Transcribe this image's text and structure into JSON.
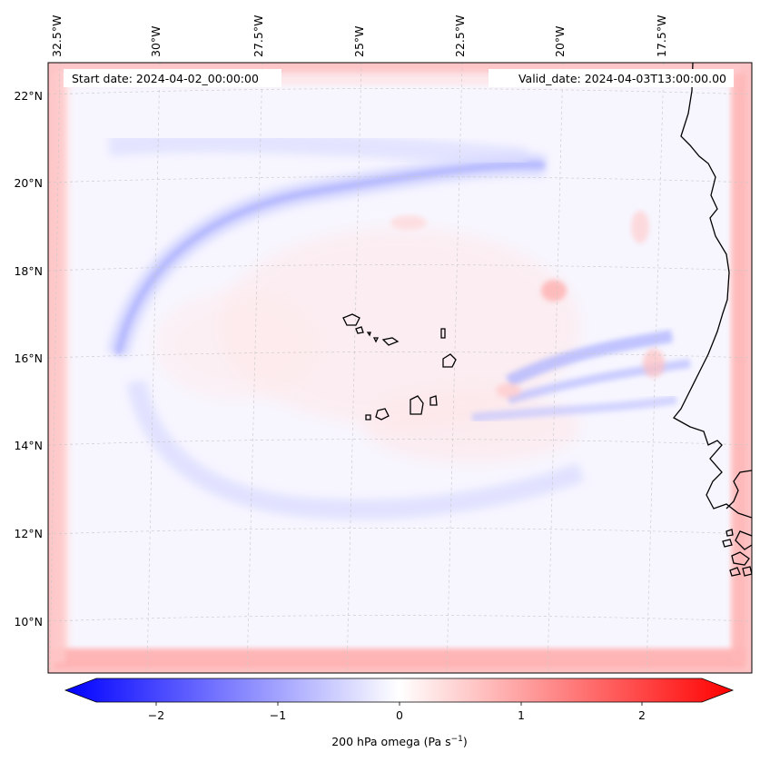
{
  "map": {
    "start_date_text": "Start date: 2024-04-02_00:00:00",
    "valid_date_text": "Valid_date: 2024-04-03T13:00:00.00",
    "longitude_labels": [
      "32.5°W",
      "30°W",
      "27.5°W",
      "25°W",
      "22.5°W",
      "20°W",
      "17.5°W"
    ],
    "latitude_labels": [
      "22°N",
      "20°N",
      "18°N",
      "16°N",
      "14°N",
      "12°N",
      "10°N"
    ],
    "colors": {
      "negative_end": "#0000ff",
      "zero": "#ffffff",
      "positive_end": "#ff0000",
      "coast": "#000000"
    }
  },
  "colorbar": {
    "ticks": [
      "−2",
      "−1",
      "0",
      "1",
      "2"
    ],
    "label": "200 hPa omega (Pa s",
    "label_exp": "−1",
    "label_close": ")"
  }
}
